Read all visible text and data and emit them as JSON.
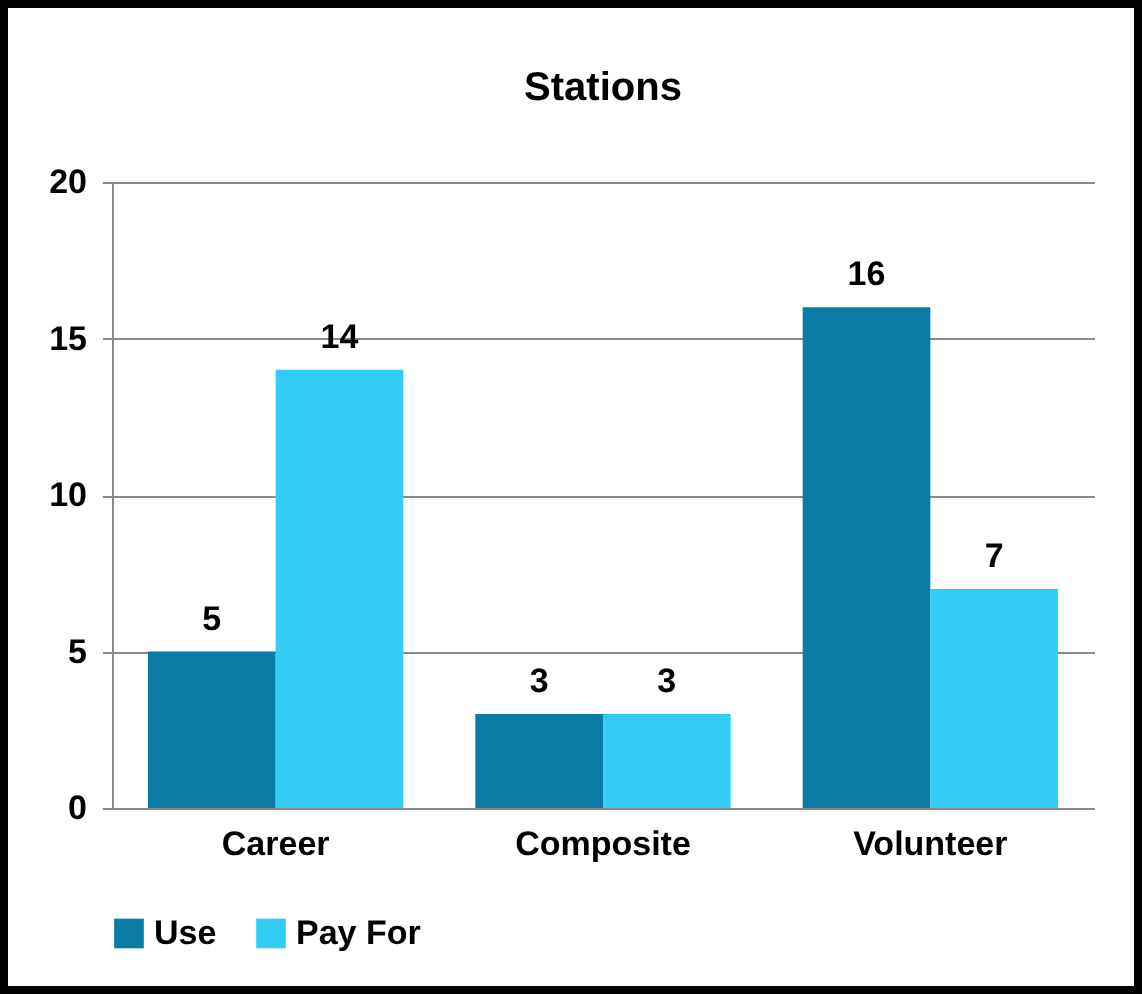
{
  "chart_data": {
    "type": "bar",
    "title": "Stations",
    "categories": [
      "Career",
      "Composite",
      "Volunteer"
    ],
    "series": [
      {
        "name": "Use",
        "color": "#0a7ca4",
        "values": [
          5,
          3,
          16
        ]
      },
      {
        "name": "Pay For",
        "color": "#33ccf5",
        "values": [
          14,
          3,
          7
        ]
      }
    ],
    "ylim": [
      0,
      20
    ],
    "yticks": [
      0,
      5,
      10,
      15,
      20
    ],
    "grid": "y",
    "legend": "bottom",
    "data_labels": true
  }
}
